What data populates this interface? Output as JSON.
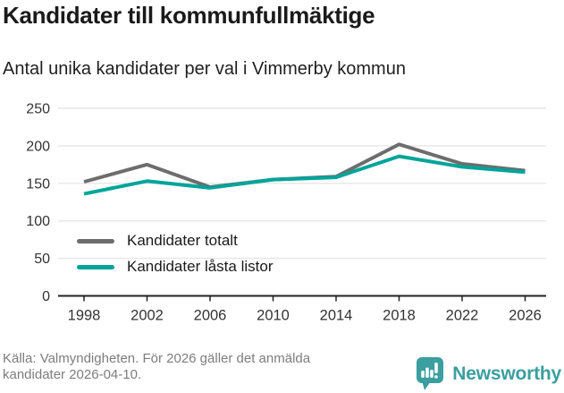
{
  "header": {
    "title": "Kandidater till kommunfullmäktige",
    "subtitle": "Antal unika kandidater per val i Vimmerby kommun"
  },
  "chart_data": {
    "type": "line",
    "x": [
      1998,
      2002,
      2006,
      2010,
      2014,
      2018,
      2022,
      2026
    ],
    "series": [
      {
        "name": "Kandidater totalt",
        "color": "#6d6d6d",
        "values": [
          152,
          175,
          145,
          155,
          159,
          202,
          176,
          167
        ]
      },
      {
        "name": "Kandidater låsta listor",
        "color": "#00a49a",
        "values": [
          136,
          153,
          144,
          155,
          158,
          186,
          172,
          165
        ]
      }
    ],
    "ylim": [
      0,
      250
    ],
    "yticks": [
      0,
      50,
      100,
      150,
      200,
      250
    ],
    "grid": "horizontal",
    "legend_position": "inside-bottom-left"
  },
  "footer": {
    "source": "Källa: Valmyndigheten. För 2026 gäller det anmälda kandidater 2026-04-10.",
    "brand": "Newsworthy"
  },
  "colors": {
    "accent_teal": "#00a49a",
    "series_gray": "#6d6d6d",
    "brand_teal": "#3b9e9f",
    "grid": "#e7e7e7",
    "axis": "#222222",
    "tick_text": "#333333"
  }
}
